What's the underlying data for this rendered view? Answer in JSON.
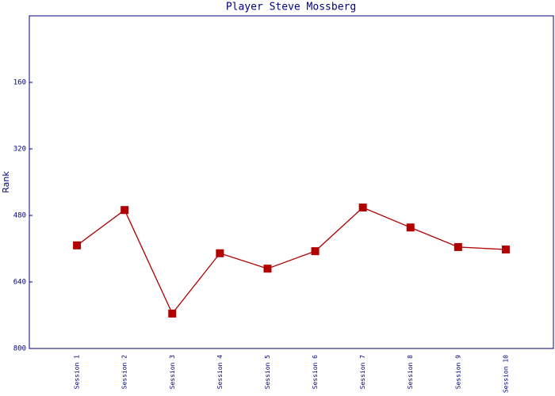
{
  "chart_data": {
    "type": "line",
    "title": "Player Steve Mossberg",
    "y_label": "Rank",
    "categories": [
      "Session 1",
      "Session 2",
      "Session 3",
      "Session 4",
      "Session 5",
      "Session 6",
      "Session 7",
      "Session 8",
      "Session 9",
      "Session 10"
    ],
    "series": [
      {
        "name": "Rank",
        "color": "#b00000",
        "values": [
          552,
          467,
          716,
          571,
          608,
          566,
          461,
          509,
          556,
          562
        ]
      }
    ],
    "ylim": [
      0,
      800
    ],
    "yticks": [
      160,
      320,
      480,
      640,
      800
    ],
    "inverted": true
  }
}
